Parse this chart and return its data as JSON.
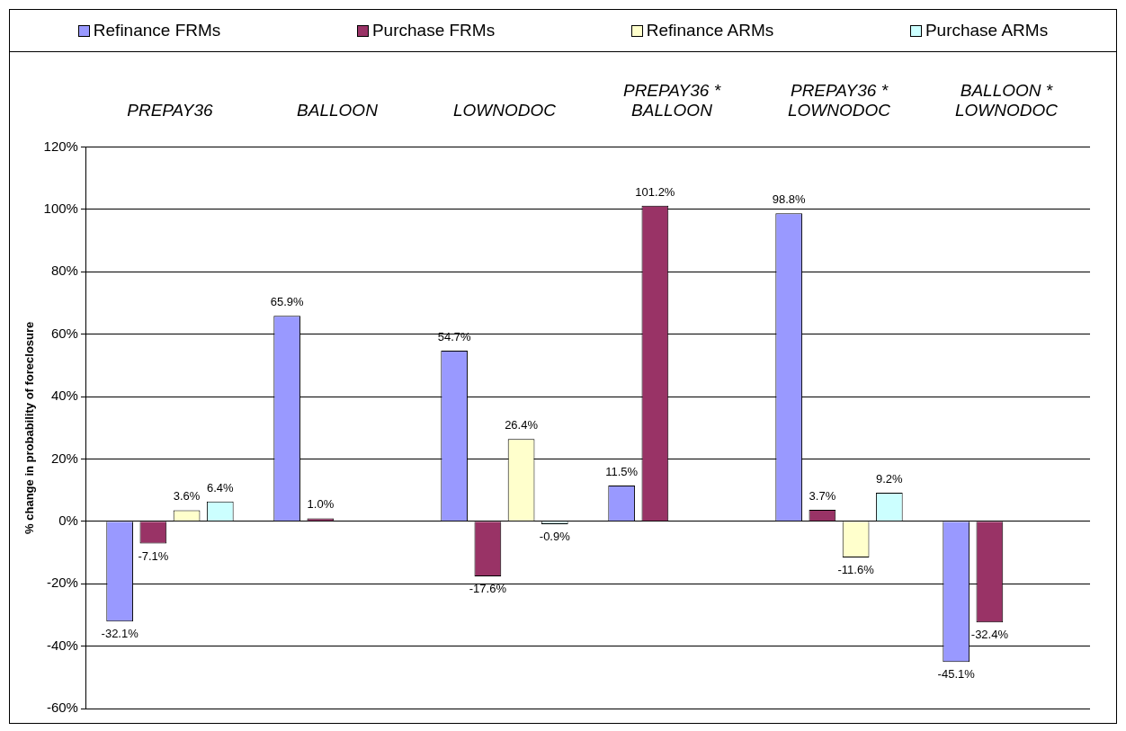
{
  "chart_data": {
    "type": "bar",
    "ylabel": "% change in probability of foreclosure",
    "categories": [
      "PREPAY36",
      "BALLOON",
      "LOWNODOC",
      "PREPAY36 * BALLOON",
      "PREPAY36 * LOWNODOC",
      "BALLOON * LOWNODOC"
    ],
    "series": [
      {
        "name": "Refinance FRMs",
        "color": "#9999ff",
        "values": [
          -32.1,
          65.9,
          54.7,
          11.5,
          98.8,
          -45.1
        ],
        "value_labels": [
          "-32.1%",
          "65.9%",
          "54.7%",
          "11.5%",
          "98.8%",
          "-45.1%"
        ]
      },
      {
        "name": "Purchase FRMs",
        "color": "#993366",
        "values": [
          -7.1,
          1.0,
          -17.6,
          101.2,
          3.7,
          -32.4
        ],
        "value_labels": [
          "-7.1%",
          "1.0%",
          "-17.6%",
          "101.2%",
          "3.7%",
          "-32.4%"
        ]
      },
      {
        "name": "Refinance ARMs",
        "color": "#ffffcc",
        "values": [
          3.6,
          null,
          26.4,
          null,
          -11.6,
          null
        ],
        "value_labels": [
          "3.6%",
          null,
          "26.4%",
          null,
          "-11.6%",
          null
        ]
      },
      {
        "name": "Purchase ARMs",
        "color": "#ccffff",
        "values": [
          6.4,
          null,
          -0.9,
          null,
          9.2,
          null
        ],
        "value_labels": [
          "6.4%",
          null,
          "-0.9%",
          null,
          "9.2%",
          null
        ]
      }
    ],
    "ylim": [
      -60,
      120
    ],
    "yticks": [
      {
        "value": -60,
        "label": "-60%"
      },
      {
        "value": -40,
        "label": "-40%"
      },
      {
        "value": -20,
        "label": "-20%"
      },
      {
        "value": 0,
        "label": "0%"
      },
      {
        "value": 20,
        "label": "20%"
      },
      {
        "value": 40,
        "label": "40%"
      },
      {
        "value": 60,
        "label": "60%"
      },
      {
        "value": 80,
        "label": "80%"
      },
      {
        "value": 100,
        "label": "100%"
      },
      {
        "value": 120,
        "label": "120%"
      }
    ],
    "grid": "y",
    "legend": "top"
  }
}
